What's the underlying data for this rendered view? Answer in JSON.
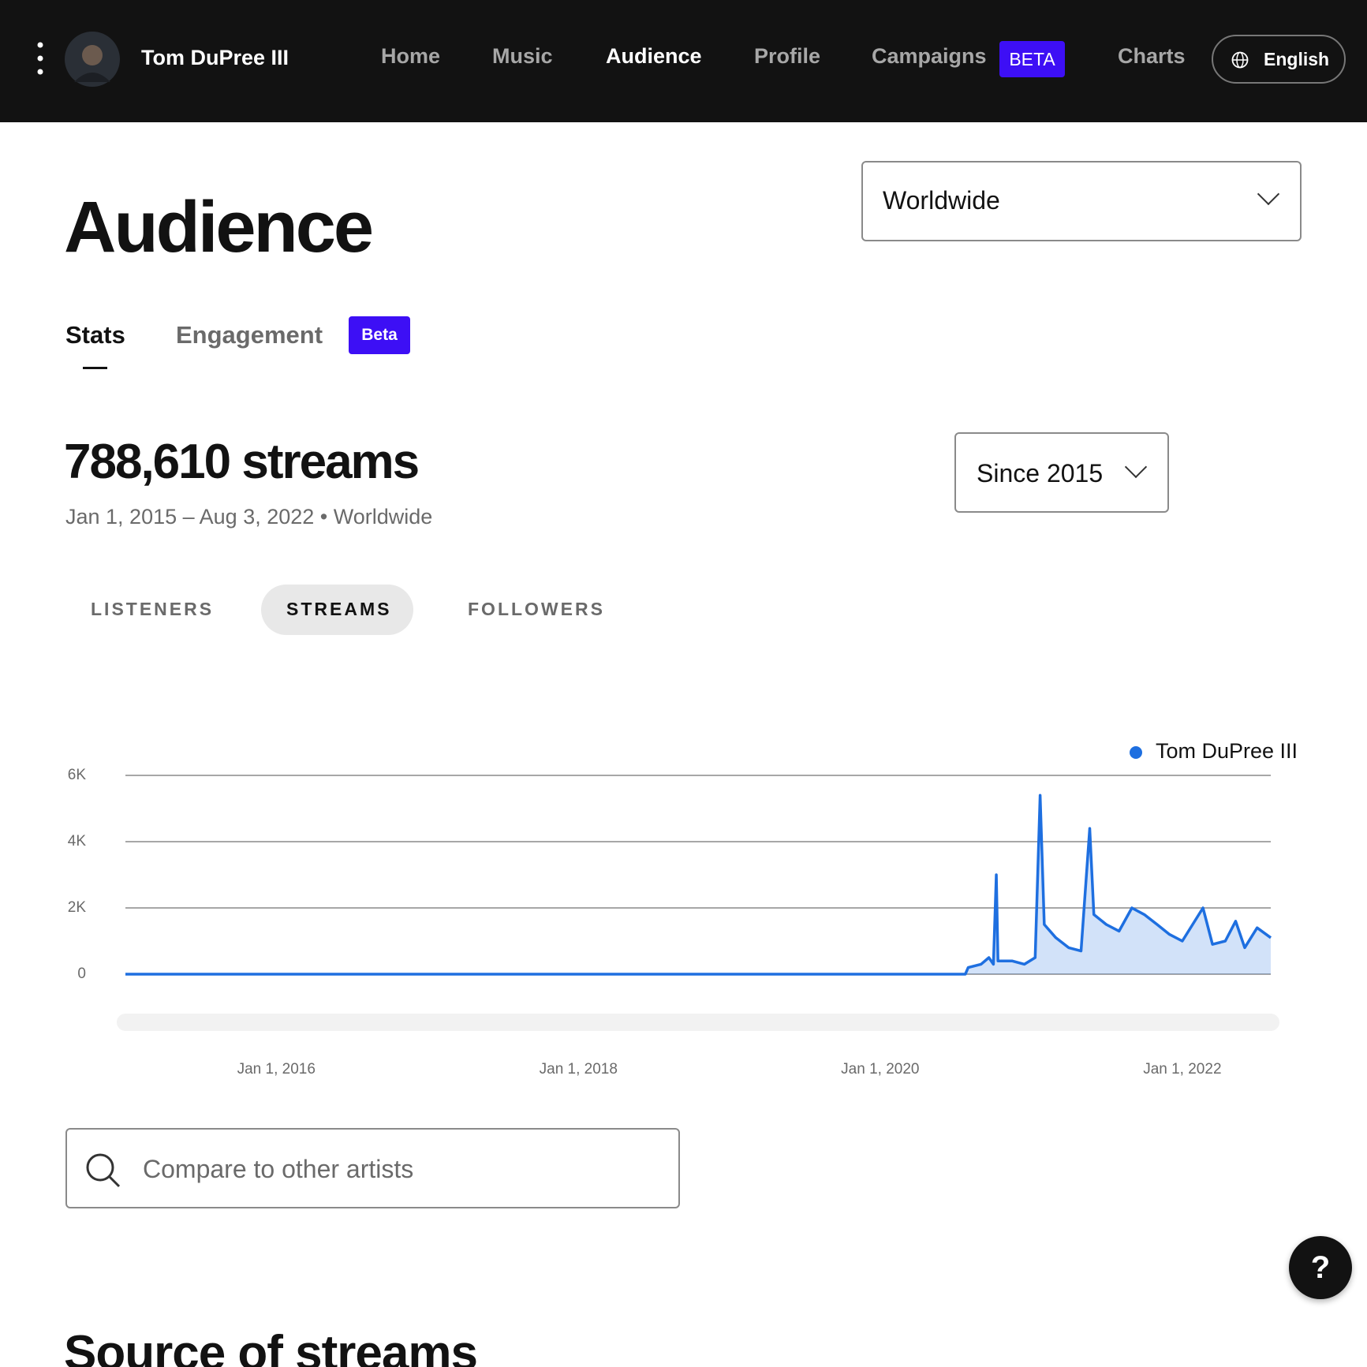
{
  "nav": {
    "artist": "Tom DuPree III",
    "items": [
      "Home",
      "Music",
      "Audience",
      "Profile",
      "Campaigns",
      "Charts"
    ],
    "campaigns_badge": "BETA",
    "language": "English"
  },
  "page": {
    "title": "Audience",
    "region": "Worldwide",
    "tabs": [
      "Stats",
      "Engagement"
    ],
    "tab_badge": "Beta",
    "total": "788,610 streams",
    "subtitle": "Jan 1, 2015 – Aug 3, 2022 • Worldwide",
    "period": "Since 2015",
    "metrics": [
      "LISTENERS",
      "STREAMS",
      "FOLLOWERS"
    ],
    "search_placeholder": "Compare to other artists",
    "help": "?",
    "section_title": "Source of streams"
  },
  "chart_data": {
    "type": "line",
    "x": [
      "2015-01-01",
      "2020-07-25",
      "2020-08-01",
      "2020-09-01",
      "2020-09-20",
      "2020-10-01",
      "2020-10-08",
      "2020-10-12",
      "2020-11-15",
      "2020-12-15",
      "2021-01-10",
      "2021-01-22",
      "2021-02-01",
      "2021-03-01",
      "2021-04-01",
      "2021-05-01",
      "2021-05-22",
      "2021-06-01",
      "2021-07-01",
      "2021-08-01",
      "2021-09-01",
      "2021-10-01",
      "2021-11-01",
      "2021-12-01",
      "2022-01-01",
      "2022-02-20",
      "2022-03-15",
      "2022-04-15",
      "2022-05-10",
      "2022-06-01",
      "2022-07-01",
      "2022-08-03"
    ],
    "series": [
      {
        "name": "Tom DuPree III",
        "color": "#1e6fe0",
        "values": [
          0,
          0,
          200,
          300,
          500,
          300,
          3000,
          400,
          400,
          300,
          500,
          5400,
          1500,
          1100,
          800,
          700,
          4400,
          1800,
          1500,
          1300,
          2000,
          1800,
          1500,
          1200,
          1000,
          2000,
          900,
          1000,
          1600,
          800,
          1400,
          1100
        ]
      }
    ],
    "xlim": [
      "2015-01-01",
      "2022-08-03"
    ],
    "xticks": [
      {
        "value": "2016-01-01",
        "label": "Jan 1, 2016"
      },
      {
        "value": "2018-01-01",
        "label": "Jan 1, 2018"
      },
      {
        "value": "2020-01-01",
        "label": "Jan 1, 2020"
      },
      {
        "value": "2022-01-01",
        "label": "Jan 1, 2022"
      }
    ],
    "ylim": [
      0,
      6000
    ],
    "yticks": [
      0,
      {
        "value": 2000,
        "label": "2K"
      },
      {
        "value": 4000,
        "label": "4K"
      },
      {
        "value": 6000,
        "label": "6K"
      }
    ],
    "grid": true,
    "area": true
  }
}
